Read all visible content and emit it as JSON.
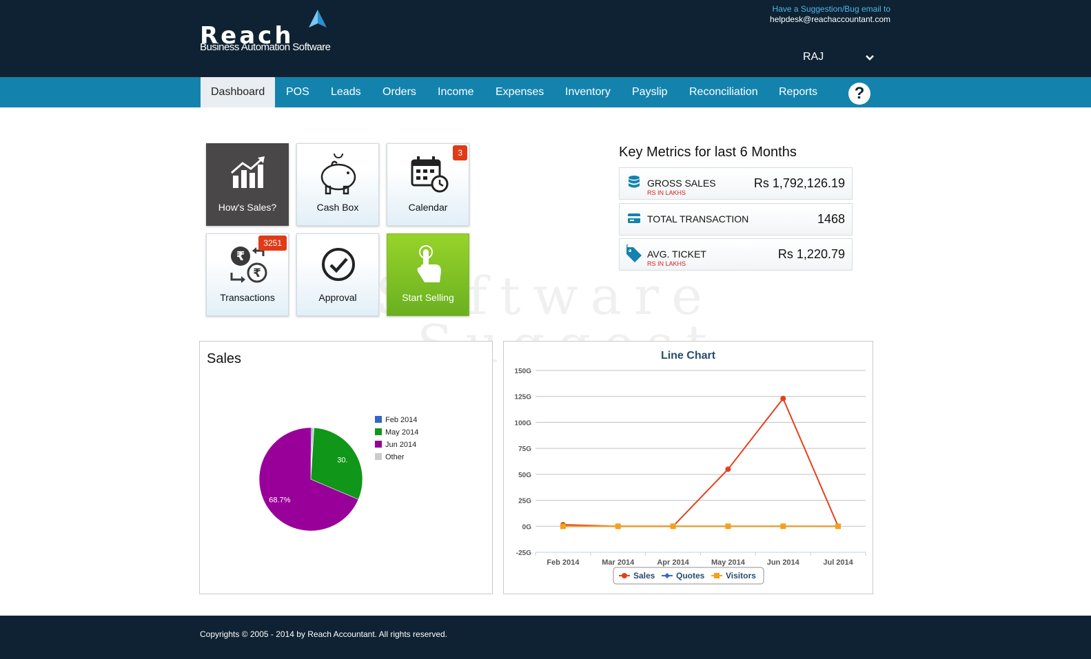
{
  "header": {
    "logo_word": "Reach",
    "logo_tagline": "Business Automation Software",
    "suggestion_line": "Have a Suggestion/Bug email to",
    "suggestion_email": "helpdesk@reachaccountant.com",
    "user_name": "RAJ"
  },
  "nav": {
    "items": [
      "Dashboard",
      "POS",
      "Leads",
      "Orders",
      "Income",
      "Expenses",
      "Inventory",
      "Payslip",
      "Reconciliation",
      "Reports"
    ],
    "active": "Dashboard",
    "help_label": "?"
  },
  "watermark": {
    "line1": "Software",
    "line2": "Suggest"
  },
  "tiles": [
    {
      "label": "How's Sales?",
      "icon": "bar-chart-icon",
      "style": "dark"
    },
    {
      "label": "Cash Box",
      "icon": "piggy-bank-icon",
      "style": "light"
    },
    {
      "label": "Calendar",
      "icon": "calendar-icon",
      "style": "light",
      "badge": "3"
    },
    {
      "label": "Transactions",
      "icon": "rupee-exchange-icon",
      "style": "light",
      "badge": "3251"
    },
    {
      "label": "Approval",
      "icon": "checkmark-icon",
      "style": "light"
    },
    {
      "label": "Start Selling",
      "icon": "hand-pointer-icon",
      "style": "green"
    }
  ],
  "key_metrics": {
    "title": "Key Metrics for last 6 Months",
    "items": [
      {
        "label": "GROSS SALES",
        "sub": "RS IN LAKHS",
        "value": "Rs 1,792,126.19",
        "icon": "database-icon"
      },
      {
        "label": "TOTAL TRANSACTION",
        "sub": "",
        "value": "1468",
        "icon": "card-icon"
      },
      {
        "label": "AVG. TICKET",
        "sub": "RS IN LAKHS",
        "value": "Rs 1,220.79",
        "icon": "price-tag-icon"
      }
    ]
  },
  "sales_panel": {
    "title": "Sales"
  },
  "line_panel": {
    "title": "Line Chart"
  },
  "footer": {
    "copyright": "Copyrights © 2005 - 2014 by Reach Accountant. All rights reserved."
  },
  "chart_data": [
    {
      "type": "pie",
      "title": "Sales",
      "slices": [
        {
          "label": "Feb 2014",
          "value": 0.4,
          "color": "#3366cc"
        },
        {
          "label": "May 2014",
          "value": 30.4,
          "color": "#109618",
          "data_label": "30."
        },
        {
          "label": "Jun 2014",
          "value": 68.7,
          "color": "#990099",
          "data_label": "68.7%"
        },
        {
          "label": "Other",
          "value": 0.5,
          "color": "#cccccc"
        }
      ],
      "legend_position": "right"
    },
    {
      "type": "line",
      "title": "Line Chart",
      "categories": [
        "Feb 2014",
        "Mar 2014",
        "Apr 2014",
        "May 2014",
        "Jun 2014",
        "Jul 2014"
      ],
      "y_ticks": [
        "-25G",
        "0G",
        "25G",
        "50G",
        "75G",
        "100G",
        "125G",
        "150G"
      ],
      "ylim": [
        -25,
        150
      ],
      "y_unit": "G",
      "grid": true,
      "legend_position": "bottom",
      "series": [
        {
          "name": "Sales",
          "color": "#e2421b",
          "marker": "circle",
          "values": [
            1.5,
            0,
            0,
            55,
            123,
            0
          ]
        },
        {
          "name": "Quotes",
          "color": "#3867c4",
          "marker": "diamond",
          "values": [
            0,
            0,
            0,
            0,
            0,
            0
          ]
        },
        {
          "name": "Visitors",
          "color": "#f5a01a",
          "marker": "square",
          "values": [
            0,
            0,
            0,
            0,
            0,
            0
          ]
        }
      ]
    }
  ]
}
